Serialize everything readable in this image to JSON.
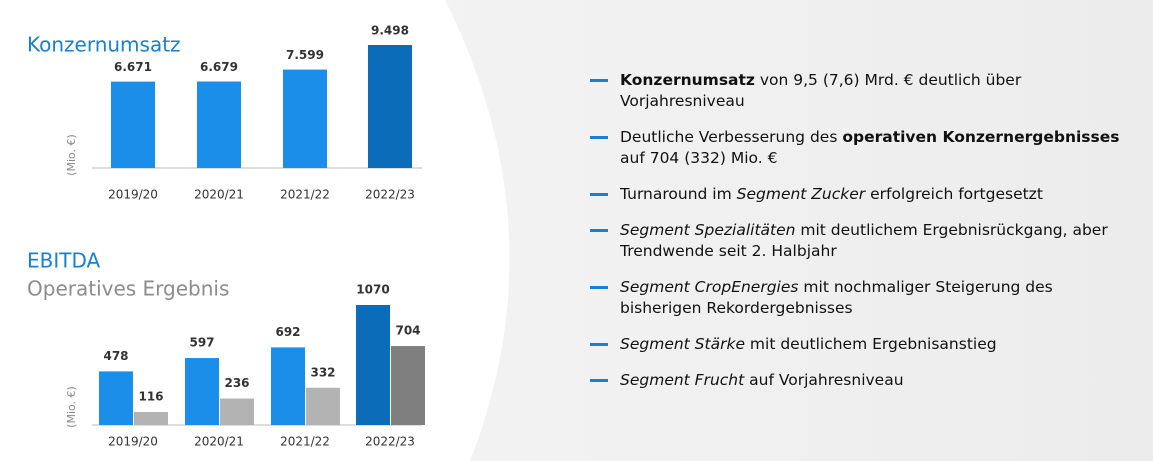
{
  "chart_data": [
    {
      "type": "bar",
      "title": "Konzernumsatz",
      "y_label": "(Mio. €)",
      "categories": [
        "2019/20",
        "2020/21",
        "2021/22",
        "2022/23"
      ],
      "values": [
        6671,
        6679,
        7599,
        9498
      ],
      "value_labels": [
        "6.671",
        "6.679",
        "7.599",
        "9.498"
      ],
      "colors": [
        "#1a8ee8",
        "#1a8ee8",
        "#1a8ee8",
        "#0b6cba"
      ]
    },
    {
      "type": "grouped_bar",
      "y_label": "(Mio. €)",
      "categories": [
        "2019/20",
        "2020/21",
        "2021/22",
        "2022/23"
      ],
      "series": [
        {
          "name": "EBITDA",
          "values": [
            478,
            597,
            692,
            1070
          ],
          "colors": [
            "#1a8ee8",
            "#1a8ee8",
            "#1a8ee8",
            "#0b6cba"
          ],
          "color": "#1a7fd0"
        },
        {
          "name": "Operatives Ergebnis",
          "values": [
            116,
            236,
            332,
            704
          ],
          "colors": [
            "#b3b3b3",
            "#b3b3b3",
            "#b3b3b3",
            "#7f7f7f"
          ],
          "color": "#8c8c8c"
        }
      ]
    }
  ],
  "bullets": [
    [
      {
        "text": "Konzernumsatz",
        "bold": true
      },
      {
        "text": " von 9,5 (7,6) Mrd. € deutlich über Vorjahresniveau"
      }
    ],
    [
      {
        "text": "Deutliche Verbesserung des "
      },
      {
        "text": "operativen Konzernergebnisses",
        "bold": true
      },
      {
        "text": " auf 704 (332) Mio. €"
      }
    ],
    [
      {
        "text": "Turnaround im "
      },
      {
        "text": "Segment Zucker",
        "italic": true
      },
      {
        "text": " erfolgreich fortgesetzt"
      }
    ],
    [
      {
        "text": "Segment Spezialitäten",
        "italic": true
      },
      {
        "text": " mit deutlichem Ergebnisrückgang, aber Trendwende seit 2. Halbjahr"
      }
    ],
    [
      {
        "text": "Segment CropEnergies",
        "italic": true
      },
      {
        "text": " mit nochmaliger Steigerung des bisherigen Rekordergebnisses"
      }
    ],
    [
      {
        "text": "Segment Stärke",
        "italic": true
      },
      {
        "text": " mit deutlichem Ergebnisanstieg"
      }
    ],
    [
      {
        "text": "Segment Frucht",
        "italic": true
      },
      {
        "text": " auf Vorjahresniveau"
      }
    ]
  ]
}
